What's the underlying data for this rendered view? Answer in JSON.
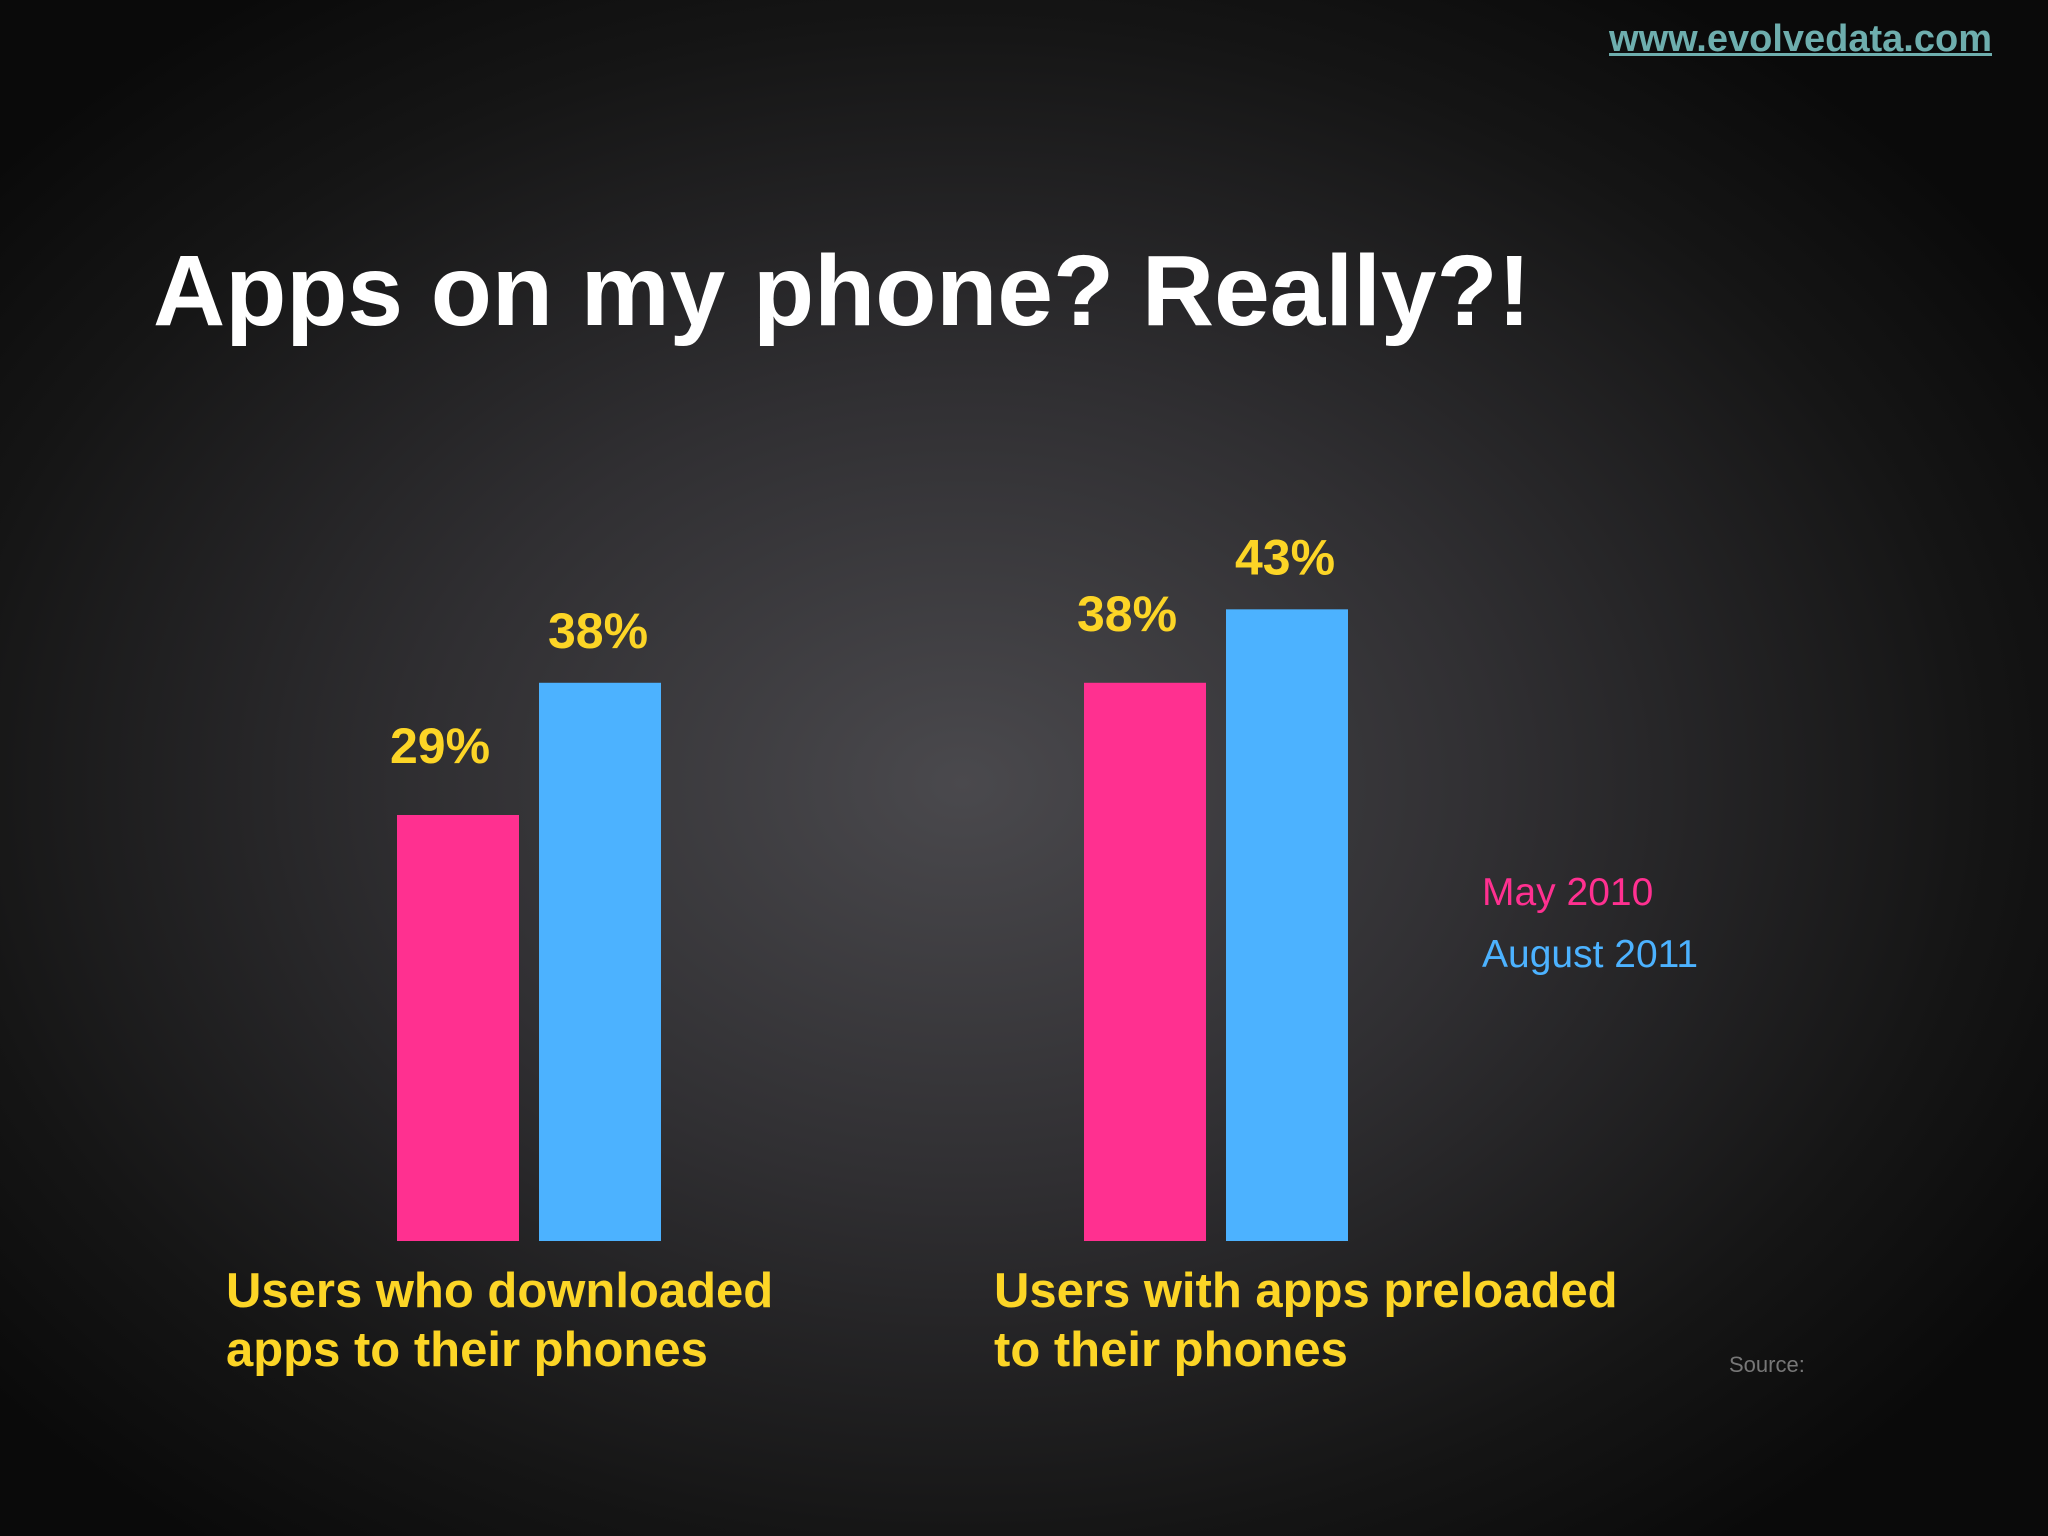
{
  "header": {
    "site_link": "www.evolvedata.com"
  },
  "title": "Apps on my phone? Really?!",
  "colors": {
    "may_2010": "#ff3090",
    "august_2011": "#4cb2ff",
    "value_label": "#fcd526",
    "group_label": "#fcd526",
    "link": "#6eaeae"
  },
  "chart_data": {
    "type": "bar",
    "categories": [
      "Users who downloaded apps to their phones",
      "Users with apps preloaded to their phones"
    ],
    "category_label_lines": [
      [
        "Users who downloaded",
        "apps to their phones"
      ],
      [
        "Users with apps preloaded",
        "to their phones"
      ]
    ],
    "series": [
      {
        "name": "May 2010",
        "values": [
          29,
          38
        ],
        "labels": [
          "29%",
          "38%"
        ]
      },
      {
        "name": "August  2011",
        "values": [
          38,
          43
        ],
        "labels": [
          "38%",
          "43%"
        ]
      }
    ],
    "ylim": [
      0,
      100
    ],
    "grid": false,
    "legend_position": "right",
    "source_label": "Source:"
  }
}
